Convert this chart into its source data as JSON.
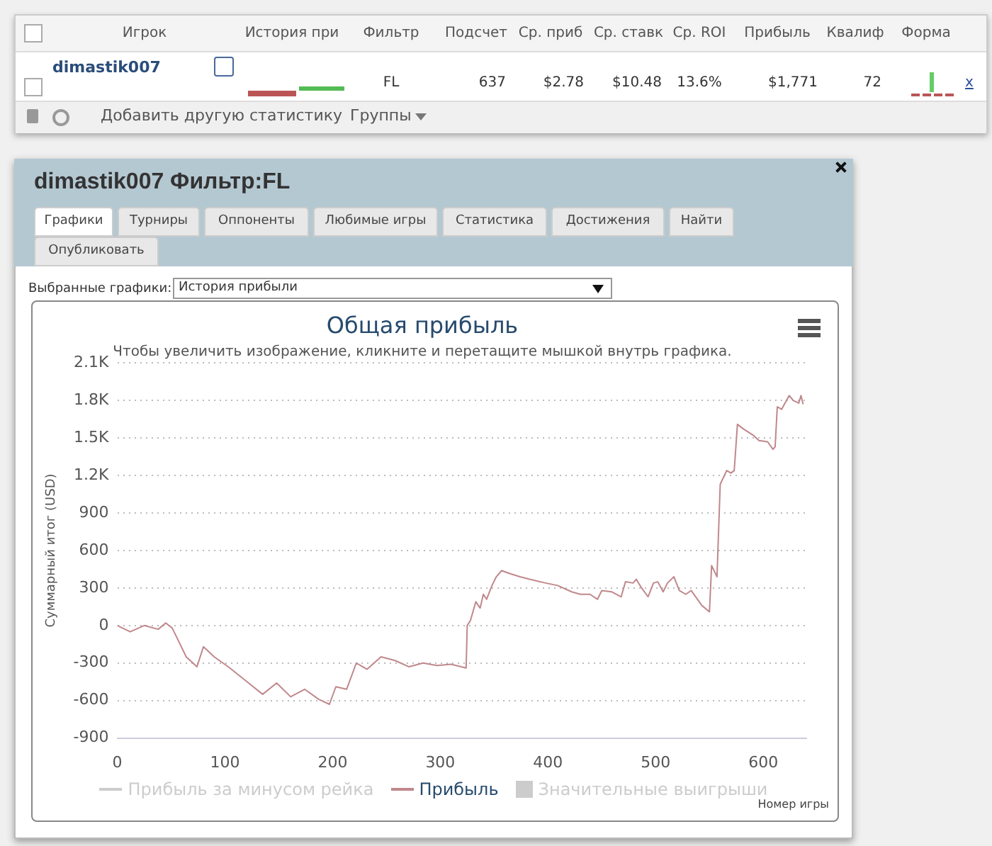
{
  "chart_data": [
    {
      "type": "other",
      "categories": [
        "Игрок",
        "История при",
        "Фильтр",
        "Подсчет",
        "Ср. приб",
        "Ср. ставк",
        "Ср. ROI",
        "Прибыль",
        "Квалиф",
        "Форма"
      ],
      "annotations": [
        "dimastik007",
        "FL",
        "637",
        "$2.78",
        "$10.48",
        "13.6%",
        "$1,771",
        "72",
        "x",
        "Добавить другую статистику",
        "Группы"
      ]
    },
    {
      "type": "other",
      "title": "dimastik007 Фильтр:FL",
      "categories": [
        "Графики",
        "Турниры",
        "Оппоненты",
        "Любимые игры",
        "Статистика",
        "Достижения",
        "Найти",
        "Опубликовать"
      ],
      "annotations": [
        "Выбранные графики:",
        "История прибыли"
      ]
    },
    {
      "type": "line",
      "title": "Общая прибыль",
      "subtitle": "Чтобы увеличить изображение, кликните и перетащите мышкой внутрь графика.",
      "xlabel": "Номер игры",
      "ylabel": "Суммарный итог (USD)",
      "xlim": [
        0,
        640
      ],
      "xticks": [
        0,
        100,
        200,
        300,
        400,
        500,
        600
      ],
      "ylim": [
        -900,
        2100
      ],
      "yticks": [
        -900,
        -600,
        -300,
        0,
        300,
        600,
        900,
        {
          "value": 1200,
          "label": "1.2K"
        },
        {
          "value": 1500,
          "label": "1.5K"
        },
        {
          "value": 1800,
          "label": "1.8K"
        },
        {
          "value": 2100,
          "label": "2.1K"
        }
      ],
      "grid": "y",
      "legend": "bottom",
      "marker": "none",
      "line_style": "solid",
      "series": [
        {
          "name": "Прибыль за минусом рейка",
          "type": "line",
          "color": "#cccccc"
        },
        {
          "name": "Прибыль",
          "type": "line",
          "color": "#c0888c",
          "x": [
            0,
            12,
            25,
            38,
            45,
            51,
            64,
            74,
            80,
            90,
            103,
            122,
            135,
            148,
            161,
            174,
            187,
            197,
            203,
            213,
            222,
            232,
            245,
            258,
            271,
            284,
            297,
            310,
            324,
            325,
            328,
            333,
            337,
            340,
            343,
            348,
            352,
            357,
            363,
            374,
            383,
            398,
            409,
            422,
            430,
            439,
            446,
            450,
            459,
            468,
            472,
            479,
            482,
            487,
            493,
            498,
            502,
            507,
            511,
            517,
            522,
            528,
            533,
            543,
            550,
            552,
            557,
            560,
            566,
            570,
            573,
            576,
            582,
            591,
            596,
            604,
            609,
            611,
            613,
            617,
            624,
            628,
            633,
            635,
            637
          ],
          "values": [
            0,
            -50,
            0,
            -30,
            20,
            -20,
            -250,
            -330,
            -170,
            -250,
            -330,
            -460,
            -550,
            -460,
            -570,
            -510,
            -590,
            -630,
            -490,
            -510,
            -300,
            -350,
            -250,
            -280,
            -330,
            -300,
            -320,
            -310,
            -340,
            0,
            40,
            190,
            140,
            250,
            210,
            320,
            390,
            440,
            420,
            390,
            370,
            340,
            320,
            270,
            250,
            250,
            210,
            280,
            270,
            230,
            350,
            340,
            370,
            300,
            230,
            340,
            350,
            270,
            340,
            390,
            280,
            250,
            280,
            160,
            110,
            480,
            390,
            1130,
            1240,
            1220,
            1240,
            1610,
            1570,
            1520,
            1480,
            1470,
            1410,
            1430,
            1750,
            1730,
            1840,
            1800,
            1780,
            1840,
            1770
          ]
        },
        {
          "name": "Значительные выигрыши",
          "type": "area",
          "color": "#cccccc"
        }
      ]
    }
  ]
}
